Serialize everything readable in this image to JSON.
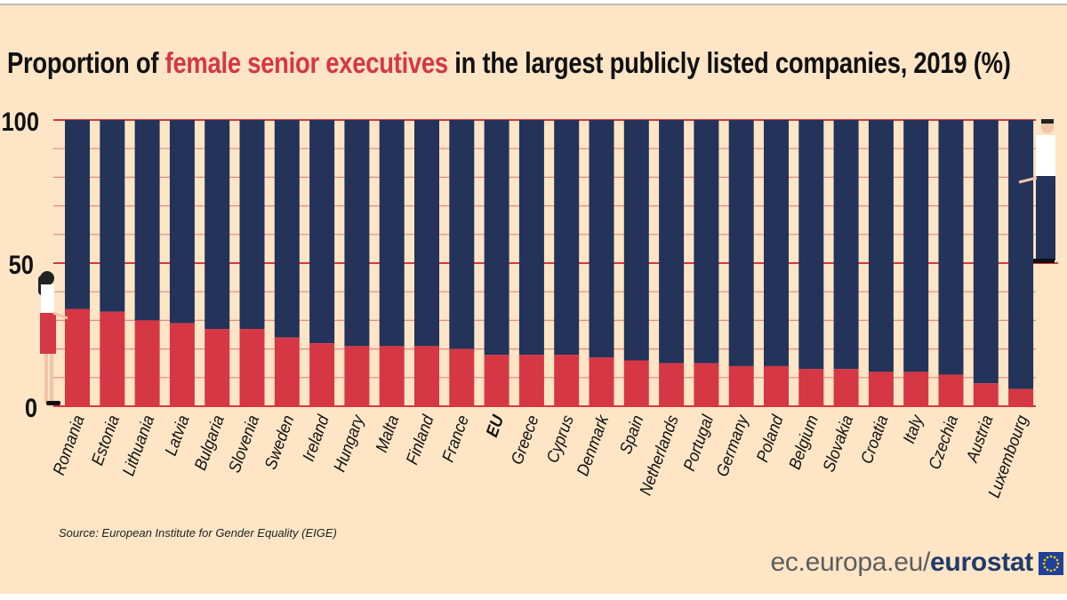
{
  "title": {
    "prefix": "Proportion of ",
    "highlight": "female senior executives",
    "suffix": " in the largest publicly listed companies, 2019 (%)"
  },
  "source": "Source: European Institute for Gender Equality (EIGE)",
  "brand": {
    "domain": "ec.europa.eu/",
    "name": "eurostat"
  },
  "colors": {
    "female": "#d63745",
    "male": "#23335a",
    "background": "#fde5c6",
    "grid": "#e08a86",
    "highlight": "#d63745"
  },
  "chart_data": {
    "type": "bar",
    "stacked": true,
    "title": "Proportion of female senior executives in the largest publicly listed companies, 2019 (%)",
    "categories": [
      "Romania",
      "Estonia",
      "Lithuania",
      "Latvia",
      "Bulgaria",
      "Slovenia",
      "Sweden",
      "Ireland",
      "Hungary",
      "Malta",
      "Finland",
      "France",
      "EU",
      "Greece",
      "Cyprus",
      "Denmark",
      "Spain",
      "Netherlands",
      "Portugal",
      "Germany",
      "Poland",
      "Belgium",
      "Slovakia",
      "Croatia",
      "Italy",
      "Czechia",
      "Austria",
      "Luxembourg"
    ],
    "series": [
      {
        "values": [
          34,
          33,
          30,
          29,
          27,
          27,
          24,
          22,
          21,
          21,
          21,
          20,
          18,
          18,
          18,
          17,
          16,
          15,
          15,
          14,
          14,
          13,
          13,
          12,
          12,
          11,
          8,
          6
        ],
        "color": "#d63745"
      },
      {
        "values": [
          66,
          67,
          70,
          71,
          73,
          73,
          76,
          78,
          79,
          79,
          79,
          80,
          82,
          82,
          82,
          83,
          84,
          85,
          85,
          86,
          86,
          87,
          87,
          88,
          88,
          89,
          92,
          94
        ],
        "color": "#23335a"
      }
    ],
    "bold_category": "EU",
    "yticks": [
      0,
      50,
      100
    ],
    "ylim": [
      0,
      100
    ],
    "grid": true,
    "xlabel": "",
    "ylabel": ""
  }
}
